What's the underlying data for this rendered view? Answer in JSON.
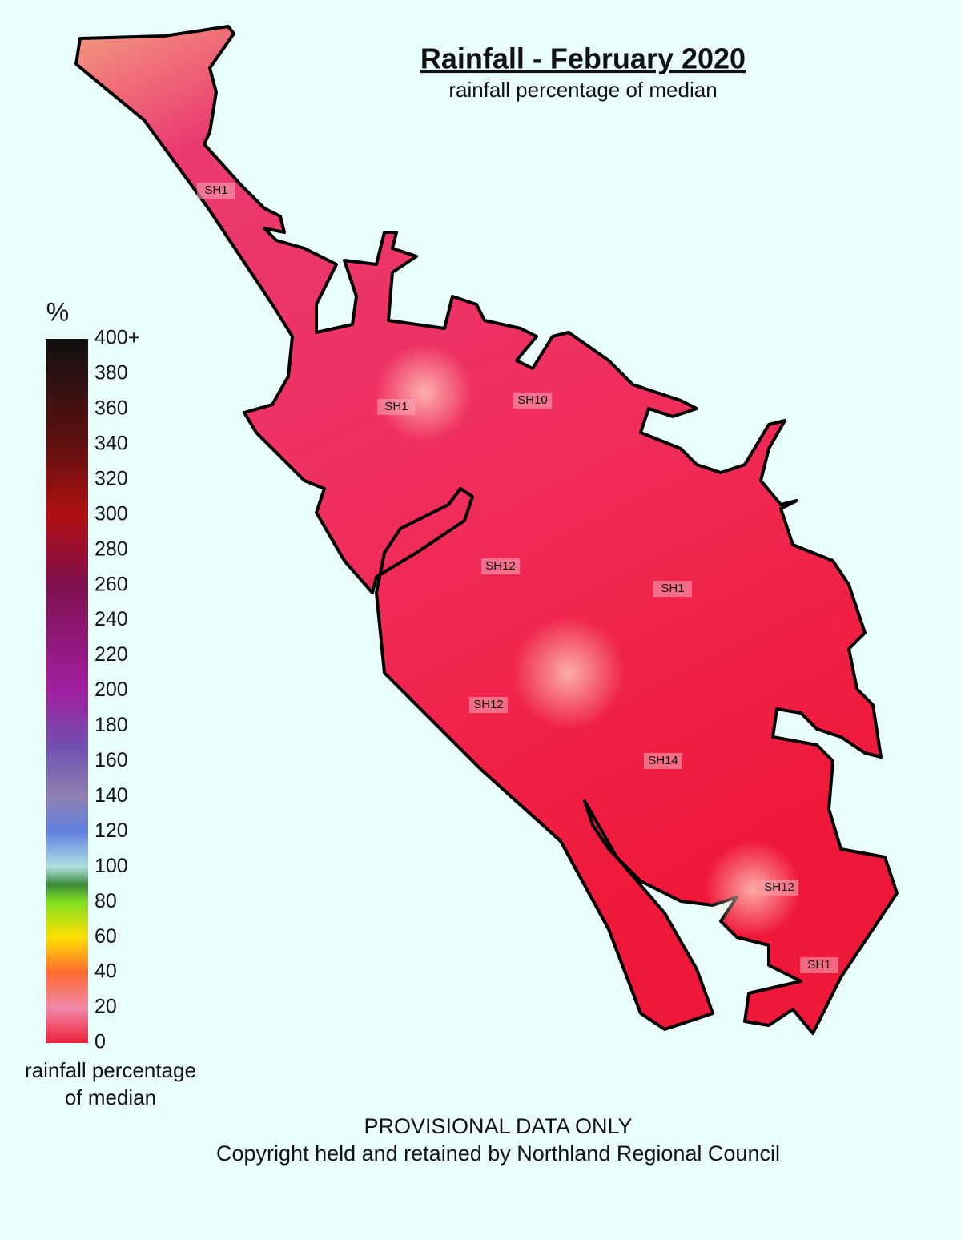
{
  "title": "Rainfall - February 2020",
  "subtitle": "rainfall percentage of median",
  "legend": {
    "unit": "%",
    "ticks": [
      0,
      20,
      40,
      60,
      80,
      100,
      120,
      140,
      160,
      180,
      200,
      220,
      240,
      260,
      280,
      300,
      320,
      340,
      360,
      380,
      {
        "value": 400,
        "label": "400+"
      }
    ],
    "caption_lines": [
      "rainfall percentage",
      "of median"
    ]
  },
  "road_labels": [
    "SH1",
    "SH1",
    "SH10",
    "SH12",
    "SH1",
    "SH12",
    "SH14",
    "SH12",
    "SH1"
  ],
  "footer": [
    "PROVISIONAL DATA ONLY",
    "Copyright held and retained by Northland Regional Council"
  ]
}
